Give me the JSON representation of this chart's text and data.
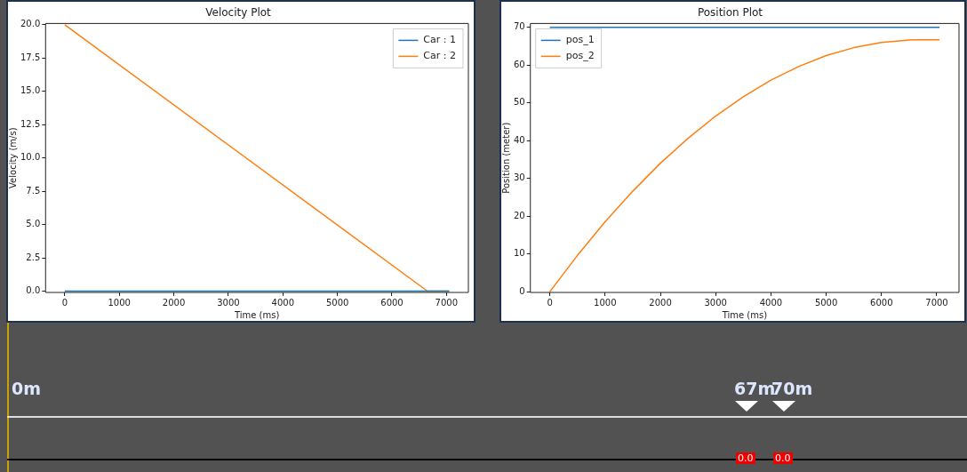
{
  "chart_data": [
    {
      "type": "line",
      "title": "Velocity Plot",
      "xlabel": "Time (ms)",
      "ylabel": "Velocity (m/s)",
      "xlim": [
        -352,
        7402
      ],
      "ylim": [
        -0.1,
        20.1
      ],
      "xticks": [
        0,
        1000,
        2000,
        3000,
        4000,
        5000,
        6000,
        7000
      ],
      "yticks": [
        {
          "value": 0,
          "label": "0.0"
        },
        2.5,
        {
          "value": 5,
          "label": "5.0"
        },
        7.5,
        {
          "value": 10,
          "label": "10.0"
        },
        12.5,
        {
          "value": 15,
          "label": "15.0"
        },
        17.5,
        {
          "value": 20,
          "label": "20.0"
        }
      ],
      "grid": false,
      "legend": "top right",
      "series": [
        {
          "name": "Car : 1",
          "color": "#1f77b4",
          "x": [
            0,
            7050
          ],
          "values": [
            0,
            0
          ]
        },
        {
          "name": "Car : 2",
          "color": "#ff7f0e",
          "x": [
            0,
            6650,
            7050
          ],
          "values": [
            20,
            0,
            0
          ]
        }
      ]
    },
    {
      "type": "line",
      "title": "Position Plot",
      "xlabel": "Time (ms)",
      "ylabel": "Position (meter)",
      "xlim": [
        -352,
        7402
      ],
      "ylim": [
        -0.2,
        71
      ],
      "xticks": [
        0,
        1000,
        2000,
        3000,
        4000,
        5000,
        6000,
        7000
      ],
      "yticks": [
        0,
        10,
        20,
        30,
        40,
        50,
        60,
        70
      ],
      "grid": false,
      "legend": "top left",
      "series": [
        {
          "name": "pos_1",
          "color": "#1f77b4",
          "x": [
            0,
            7050
          ],
          "values": [
            70,
            70
          ]
        },
        {
          "name": "pos_2",
          "color": "#ff7f0e",
          "x": [
            0,
            500,
            1000,
            1500,
            2000,
            2500,
            3000,
            3500,
            4000,
            4500,
            5000,
            5500,
            6000,
            6500,
            6650,
            7050
          ],
          "values": [
            0,
            9.6,
            18.5,
            26.6,
            34,
            40.6,
            46.5,
            51.6,
            56,
            59.6,
            62.5,
            64.6,
            66,
            66.6,
            66.7,
            66.7
          ]
        }
      ]
    },
    {
      "type": "other",
      "annotations": [
        "0m",
        "67m",
        "70m",
        "0.0",
        "0.0"
      ]
    }
  ]
}
